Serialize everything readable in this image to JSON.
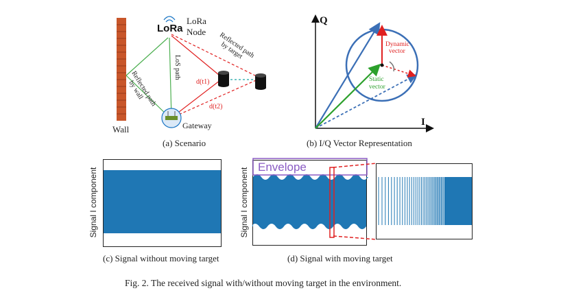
{
  "scenario": {
    "lora_logo": "LoRa",
    "node_label_1": "LoRa",
    "node_label_2": "Node",
    "wall_label": "Wall",
    "gateway_label": "Gateway",
    "los_label": "LoS path",
    "reflect_wall_1": "Reflected path",
    "reflect_wall_2": "by wall",
    "reflect_target_1": "Reflected path",
    "reflect_target_2": "by target",
    "d1_label": "d(t1)",
    "d2_label": "d(t2)",
    "caption": "(a) Scenario"
  },
  "iq": {
    "q_axis": "Q",
    "i_axis": "I",
    "dynamic_1": "Dynamic",
    "dynamic_2": "vector",
    "static_1": "Static",
    "static_2": "vector",
    "caption": "(b) I/Q Vector Representation",
    "colors": {
      "blue": "#3b6fb6",
      "green": "#2ca02c",
      "red": "#e02020"
    }
  },
  "signal_c": {
    "ylabel": "Signal I component",
    "caption": "(c) Signal without moving target"
  },
  "signal_d": {
    "ylabel": "Signal I component",
    "envelope_label": "Envelope",
    "caption": "(d) Signal with moving target",
    "colors": {
      "signal": "#1f77b4",
      "envelope": "#8a5bc4",
      "zoom_box": "#e02020"
    }
  },
  "figure_caption": "Fig. 2.  The received signal with/without moving target in the environment."
}
